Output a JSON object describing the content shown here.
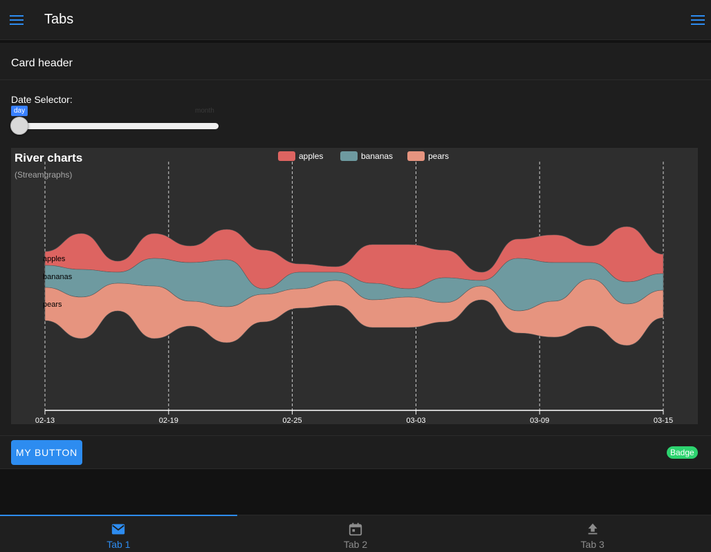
{
  "toolbar": {
    "title": "Tabs",
    "start_icon": "menu-icon",
    "end_icon": "menu-icon",
    "accent": "#2d8cf0"
  },
  "card": {
    "header": "Card header",
    "range": {
      "label": "Date Selector:",
      "pin_left": "day",
      "pin_right": "month",
      "value": 0
    },
    "button_label": "MY BUTTON",
    "badge": "Badge"
  },
  "chart_data": {
    "type": "area",
    "subtype": "streamgraph",
    "title": "River charts",
    "subtitle": "(Streamgraphs)",
    "legend_position": "top-center",
    "x_ticks": [
      "02-13",
      "02-19",
      "02-25",
      "03-03",
      "03-09",
      "03-15"
    ],
    "grid": "vertical-dashed",
    "series": [
      {
        "name": "apples",
        "color": "#dd6461",
        "values": [
          10,
          26,
          8,
          18,
          12,
          22,
          28,
          6,
          4,
          28,
          32,
          20,
          6,
          14,
          20,
          12,
          40,
          14
        ]
      },
      {
        "name": "bananas",
        "color": "#6e9aa0",
        "values": [
          16,
          20,
          8,
          20,
          28,
          34,
          4,
          12,
          6,
          12,
          6,
          18,
          4,
          38,
          28,
          12,
          16,
          12
        ]
      },
      {
        "name": "pears",
        "color": "#e6947f",
        "values": [
          24,
          30,
          20,
          38,
          18,
          26,
          20,
          14,
          18,
          20,
          22,
          14,
          10,
          16,
          26,
          34,
          30,
          20
        ]
      }
    ]
  },
  "tabs": [
    {
      "label": "Tab 1",
      "icon": "mail-icon",
      "active": true
    },
    {
      "label": "Tab 2",
      "icon": "calendar-icon",
      "active": false
    },
    {
      "label": "Tab 3",
      "icon": "upload-icon",
      "active": false
    }
  ]
}
